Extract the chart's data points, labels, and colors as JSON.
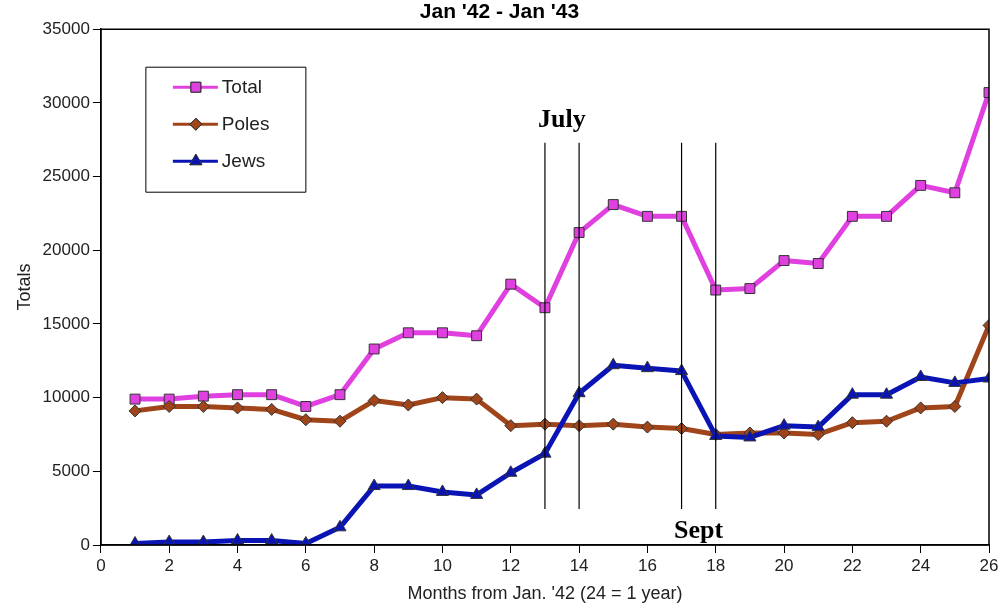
{
  "chart_data": {
    "type": "line",
    "title": "Jan '42 - Jan '43",
    "xlabel": "Months from Jan. '42 (24 = 1 year)",
    "ylabel": "Totals",
    "x": [
      1,
      2,
      3,
      4,
      5,
      6,
      7,
      8,
      9,
      10,
      11,
      12,
      13,
      14,
      15,
      16,
      17,
      18,
      19,
      20,
      21,
      22,
      23,
      24,
      25,
      26
    ],
    "series": [
      {
        "name": "Total",
        "color": "#e040e0",
        "marker": "square",
        "values": [
          9900,
          9900,
          10100,
          10200,
          10200,
          9400,
          10200,
          13300,
          14400,
          14400,
          14200,
          17700,
          16100,
          21200,
          23100,
          22300,
          22300,
          17300,
          17400,
          19300,
          19100,
          22300,
          22300,
          24400,
          23900,
          30700
        ]
      },
      {
        "name": "Poles",
        "color": "#a0441a",
        "marker": "diamond",
        "values": [
          9100,
          9400,
          9400,
          9300,
          9200,
          8500,
          8400,
          9800,
          9500,
          10000,
          9900,
          8100,
          8200,
          8100,
          8200,
          8000,
          7900,
          7500,
          7600,
          7600,
          7500,
          8300,
          8400,
          9300,
          9400,
          14900
        ]
      },
      {
        "name": "Jews",
        "color": "#0a14b4",
        "marker": "triangle",
        "values": [
          100,
          200,
          200,
          300,
          300,
          100,
          1200,
          4000,
          4000,
          3600,
          3400,
          4900,
          6200,
          10300,
          12200,
          12000,
          11800,
          7400,
          7300,
          8100,
          8000,
          10200,
          10200,
          11400,
          11000,
          11300
        ]
      }
    ],
    "xlim": [
      0,
      26
    ],
    "xticks": [
      0,
      2,
      4,
      6,
      8,
      10,
      12,
      14,
      16,
      18,
      20,
      22,
      24,
      26
    ],
    "ylim": [
      0,
      35000
    ],
    "yticks": [
      0,
      5000,
      10000,
      15000,
      20000,
      25000,
      30000,
      35000
    ],
    "grid": false,
    "legend": "top left",
    "line_style": "solid",
    "ref_lines": [
      {
        "axis": "x",
        "value": 13,
        "color": "#000000",
        "label": "July"
      },
      {
        "axis": "x",
        "value": 14,
        "color": "#000000"
      },
      {
        "axis": "x",
        "value": 17,
        "color": "#000000",
        "label": "Sept"
      },
      {
        "axis": "x",
        "value": 18,
        "color": "#000000"
      }
    ]
  }
}
